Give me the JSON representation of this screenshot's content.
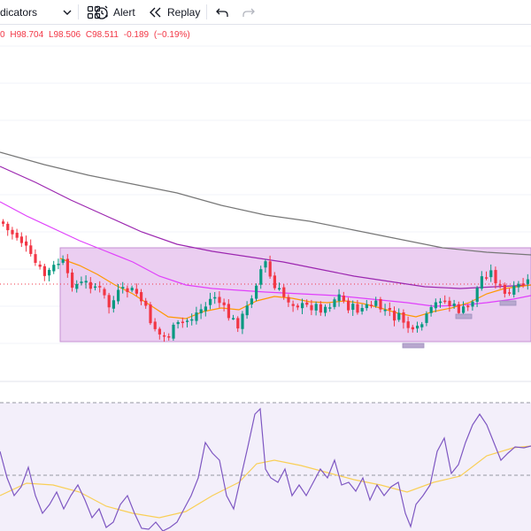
{
  "toolbar": {
    "indicators_label": "dicators",
    "alert_label": "Alert",
    "replay_label": "Replay"
  },
  "ohlc": {
    "open": "0",
    "high": "H98.704",
    "low": "L98.506",
    "close": "C98.511",
    "change": "-0.189",
    "change_pct": "(−0.19%)"
  },
  "colors": {
    "up": "#089981",
    "down": "#f23645",
    "ma_long": "#777777",
    "ma_mid": "#9c27b0",
    "ma_short": "#e040fb",
    "ma_fast": "#ff9800",
    "range_fill": "#e7c6ee",
    "range_border": "#c690d3",
    "oscillator": "#7e57c2",
    "oscillator_signal": "#f9cf56",
    "oscillator_bg": "#f3effa"
  },
  "icons": [
    "chevron-down-icon",
    "grid-icon",
    "alarm-clock-icon",
    "rewind-icon",
    "undo-icon",
    "redo-icon"
  ]
}
